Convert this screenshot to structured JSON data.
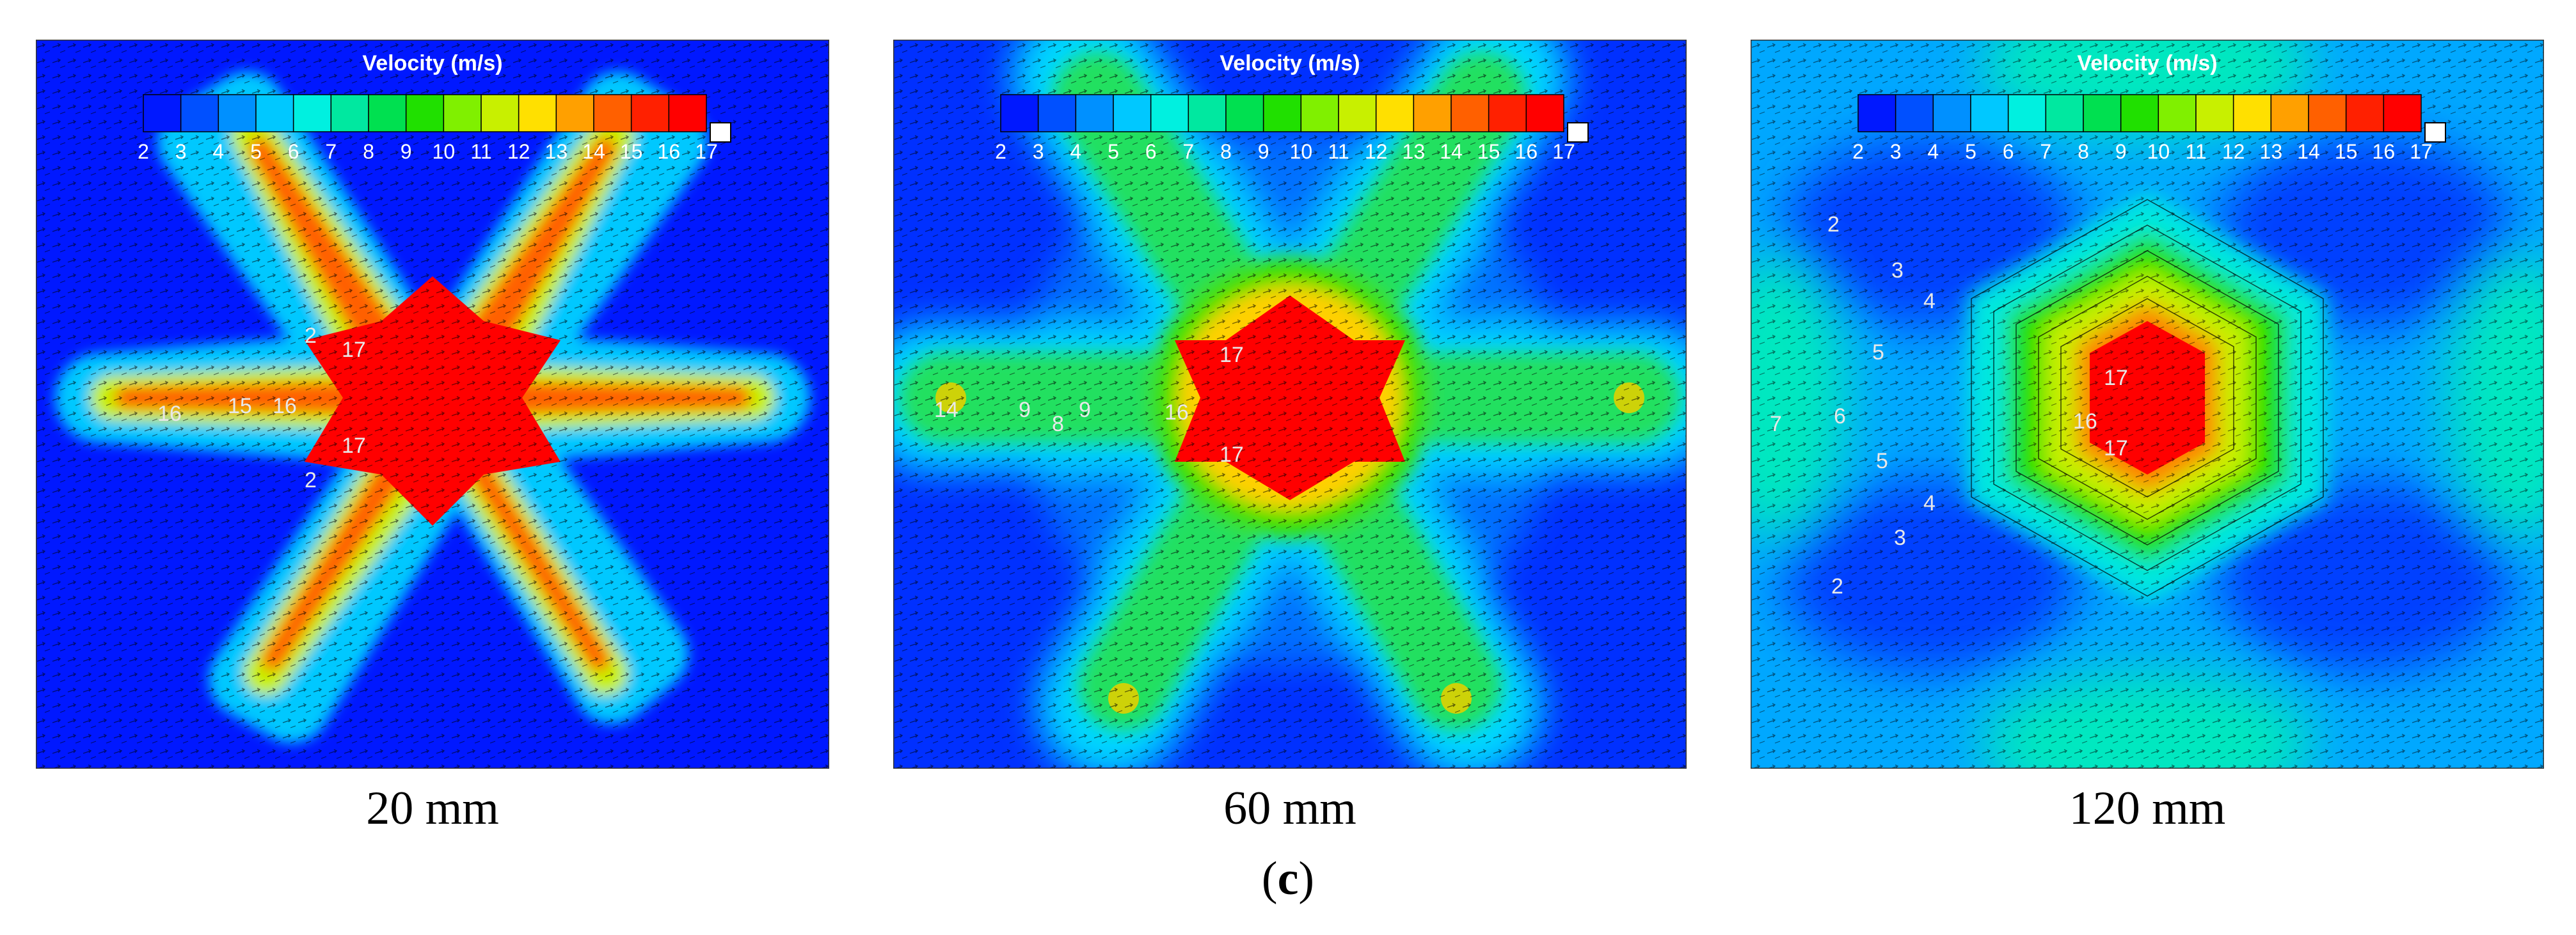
{
  "figure": {
    "label_open": "(",
    "label_letter": "c",
    "label_close": ")"
  },
  "chart_data": [
    {
      "type": "heatmap",
      "caption": "20 mm",
      "colorbar": {
        "title": "Velocity (m/s)",
        "ticks": [
          "2",
          "3",
          "4",
          "5",
          "6",
          "7",
          "8",
          "9",
          "10",
          "11",
          "12",
          "13",
          "14",
          "15",
          "16",
          "17"
        ],
        "range": [
          2,
          17
        ]
      },
      "contour_labels": [
        "2",
        "2",
        "17",
        "17",
        "16",
        "15",
        "16"
      ]
    },
    {
      "type": "heatmap",
      "caption": "60 mm",
      "colorbar": {
        "title": "Velocity (m/s)",
        "ticks": [
          "2",
          "3",
          "4",
          "5",
          "6",
          "7",
          "8",
          "9",
          "10",
          "11",
          "12",
          "13",
          "14",
          "15",
          "16",
          "17"
        ],
        "range": [
          2,
          17
        ]
      },
      "contour_labels": [
        "17",
        "17",
        "16",
        "9",
        "8",
        "9",
        "14"
      ]
    },
    {
      "type": "heatmap",
      "caption": "120 mm",
      "colorbar": {
        "title": "Velocity (m/s)",
        "ticks": [
          "2",
          "3",
          "4",
          "5",
          "6",
          "7",
          "8",
          "9",
          "10",
          "11",
          "12",
          "13",
          "14",
          "15",
          "16",
          "17"
        ],
        "range": [
          2,
          17
        ]
      },
      "contour_labels": [
        "2",
        "3",
        "4",
        "5",
        "5",
        "4",
        "3",
        "2",
        "17",
        "16",
        "17",
        "6",
        "7"
      ]
    }
  ],
  "colors": {
    "scale": [
      "#0018ff",
      "#0050ff",
      "#0090ff",
      "#00c8ff",
      "#00f0e0",
      "#00e8a0",
      "#00e050",
      "#20e000",
      "#80f000",
      "#c8f000",
      "#ffe000",
      "#ffa000",
      "#ff6000",
      "#ff2000",
      "#ff0000"
    ]
  }
}
